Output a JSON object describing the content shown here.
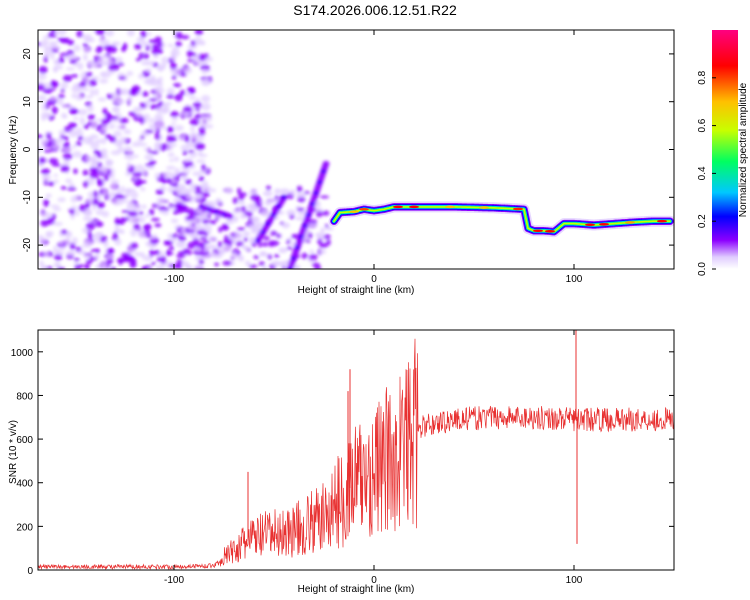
{
  "title": "S174.2026.006.12.51.R22",
  "chart_data": [
    {
      "type": "heatmap",
      "name": "spectrogram",
      "xlabel": "Height of straight line (km)",
      "ylabel": "Frequency (Hz)",
      "xlim": [
        -168,
        150
      ],
      "ylim": [
        -25,
        25
      ],
      "xticks": [
        -100,
        0,
        100
      ],
      "yticks": [
        -20,
        -10,
        0,
        10,
        20
      ],
      "colorbar": {
        "label": "Normalized spectral amplitude",
        "range": [
          0,
          1
        ],
        "ticks": [
          "0.0",
          "0.2",
          "0.4",
          "0.6",
          "0.8"
        ]
      },
      "colormap": [
        "#ffffff",
        "#e0ccff",
        "#8c00ff",
        "#0000ff",
        "#00c8ff",
        "#00ff60",
        "#c8ff00",
        "#ffc000",
        "#ff0000",
        "#ff0080"
      ],
      "ridge": {
        "x": [
          -20,
          -17,
          -10,
          -5,
          0,
          5,
          10,
          20,
          40,
          60,
          75,
          77,
          80,
          85,
          90,
          95,
          100,
          110,
          120,
          130,
          140,
          148
        ],
        "y": [
          -15,
          -13.2,
          -13,
          -12.5,
          -12.8,
          -12.5,
          -12,
          -12,
          -12,
          -12.2,
          -12.5,
          -16.5,
          -17,
          -17,
          -17.2,
          -15.5,
          -15.5,
          -15.8,
          -15.5,
          -15.2,
          -15,
          -15
        ]
      }
    },
    {
      "type": "line",
      "name": "snr",
      "xlabel": "Height of straight line (km)",
      "ylabel": "SNR (10 * v/v)",
      "xlim": [
        -168,
        150
      ],
      "ylim": [
        0,
        1100
      ],
      "xticks": [
        -100,
        0,
        100
      ],
      "yticks": [
        0,
        200,
        400,
        600,
        800,
        1000
      ],
      "color": "#e83030",
      "envelope": {
        "x": [
          -168,
          -100,
          -80,
          -75,
          -60,
          -40,
          -25,
          -15,
          -10,
          -5,
          0,
          10,
          20,
          25,
          40,
          60,
          80,
          100,
          120,
          150
        ],
        "y": [
          15,
          15,
          20,
          60,
          150,
          180,
          240,
          340,
          400,
          420,
          450,
          520,
          620,
          660,
          690,
          700,
          700,
          690,
          690,
          690
        ]
      },
      "spikes": [
        {
          "x": -63,
          "y": 450
        },
        {
          "x": -12,
          "y": 920
        },
        {
          "x": -13,
          "y": 820
        },
        {
          "x": 101,
          "y": 1100
        },
        {
          "x": 101.5,
          "y": 120
        }
      ]
    }
  ]
}
